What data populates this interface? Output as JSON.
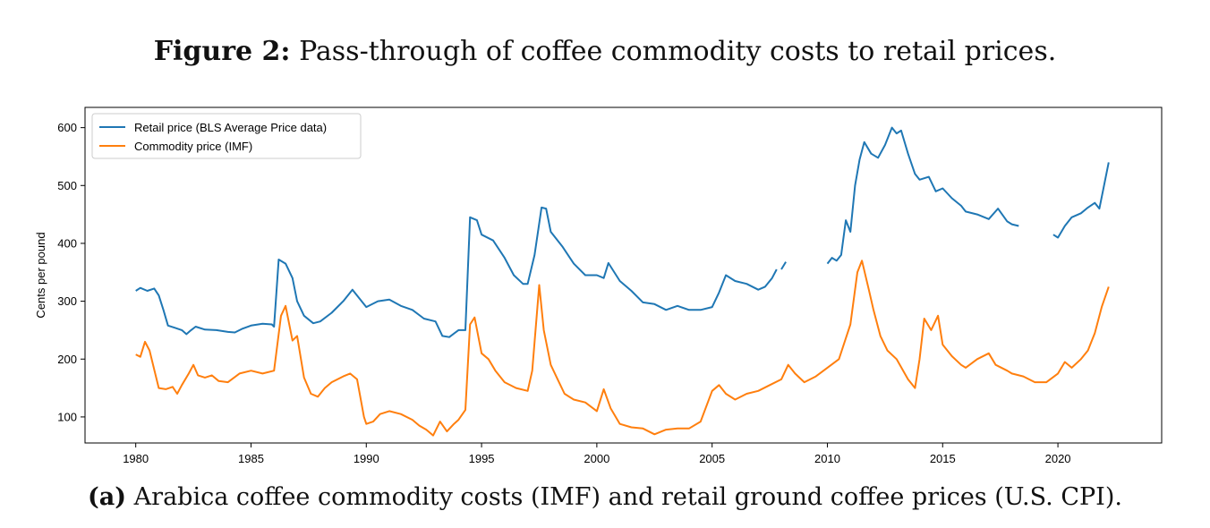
{
  "figure": {
    "label": "Figure 2:",
    "title": "Pass-through of coffee commodity costs to retail prices.",
    "caption_label": "(a)",
    "caption": "Arabica coffee commodity costs (IMF) and retail ground coffee prices (U.S. CPI)."
  },
  "chart_data": {
    "type": "line",
    "title": "",
    "xlabel": "",
    "ylabel": "Cents per pound",
    "xlim": [
      1977.8,
      2024.5
    ],
    "ylim": [
      55,
      635
    ],
    "xticks": [
      1980,
      1985,
      1990,
      1995,
      2000,
      2005,
      2010,
      2015,
      2020
    ],
    "yticks": [
      100,
      200,
      300,
      400,
      500,
      600
    ],
    "legend_position": "top-left",
    "series": [
      {
        "name": "Retail price (BLS Average Price data)",
        "color": "#1f77b4",
        "segments": [
          [
            [
              1980.0,
              318
            ],
            [
              1980.2,
              323
            ],
            [
              1980.5,
              318
            ],
            [
              1980.8,
              322
            ],
            [
              1981.0,
              310
            ],
            [
              1981.2,
              285
            ],
            [
              1981.4,
              258
            ],
            [
              1981.7,
              254
            ],
            [
              1982.0,
              250
            ],
            [
              1982.2,
              243
            ],
            [
              1982.4,
              250
            ],
            [
              1982.6,
              256
            ],
            [
              1983.0,
              251
            ],
            [
              1983.5,
              250
            ],
            [
              1984.0,
              247
            ],
            [
              1984.3,
              246
            ],
            [
              1984.6,
              252
            ],
            [
              1985.0,
              258
            ],
            [
              1985.5,
              261
            ],
            [
              1985.9,
              260
            ],
            [
              1986.0,
              256
            ],
            [
              1986.2,
              372
            ],
            [
              1986.5,
              365
            ],
            [
              1986.8,
              340
            ],
            [
              1987.0,
              300
            ],
            [
              1987.3,
              275
            ],
            [
              1987.7,
              262
            ],
            [
              1988.0,
              265
            ],
            [
              1988.5,
              280
            ],
            [
              1989.0,
              300
            ],
            [
              1989.4,
              320
            ],
            [
              1989.7,
              305
            ],
            [
              1990.0,
              290
            ],
            [
              1990.5,
              300
            ],
            [
              1991.0,
              303
            ],
            [
              1991.5,
              292
            ],
            [
              1992.0,
              285
            ],
            [
              1992.5,
              270
            ],
            [
              1993.0,
              265
            ],
            [
              1993.3,
              240
            ],
            [
              1993.6,
              238
            ],
            [
              1994.0,
              250
            ],
            [
              1994.3,
              250
            ],
            [
              1994.5,
              445
            ],
            [
              1994.8,
              440
            ],
            [
              1995.0,
              415
            ],
            [
              1995.5,
              405
            ],
            [
              1996.0,
              375
            ],
            [
              1996.4,
              345
            ],
            [
              1996.8,
              330
            ],
            [
              1997.0,
              330
            ],
            [
              1997.3,
              380
            ],
            [
              1997.6,
              462
            ],
            [
              1997.8,
              460
            ],
            [
              1998.0,
              420
            ],
            [
              1998.5,
              395
            ],
            [
              1999.0,
              365
            ],
            [
              1999.5,
              345
            ],
            [
              2000.0,
              345
            ],
            [
              2000.3,
              340
            ],
            [
              2000.5,
              366
            ],
            [
              2001.0,
              335
            ],
            [
              2001.5,
              318
            ],
            [
              2002.0,
              298
            ],
            [
              2002.5,
              295
            ],
            [
              2003.0,
              285
            ],
            [
              2003.5,
              292
            ],
            [
              2004.0,
              285
            ],
            [
              2004.5,
              285
            ],
            [
              2005.0,
              290
            ],
            [
              2005.3,
              315
            ],
            [
              2005.6,
              345
            ],
            [
              2006.0,
              335
            ],
            [
              2006.5,
              330
            ],
            [
              2007.0,
              320
            ],
            [
              2007.3,
              325
            ],
            [
              2007.6,
              340
            ],
            [
              2007.8,
              355
            ]
          ],
          [
            [
              2008.0,
              355
            ],
            [
              2008.2,
              368
            ]
          ],
          [
            [
              2010.0,
              365
            ],
            [
              2010.2,
              375
            ],
            [
              2010.4,
              370
            ],
            [
              2010.6,
              380
            ],
            [
              2010.8,
              440
            ],
            [
              2011.0,
              420
            ],
            [
              2011.2,
              500
            ],
            [
              2011.4,
              545
            ],
            [
              2011.6,
              575
            ],
            [
              2011.9,
              555
            ],
            [
              2012.2,
              548
            ],
            [
              2012.5,
              570
            ],
            [
              2012.8,
              600
            ],
            [
              2013.0,
              590
            ],
            [
              2013.2,
              595
            ],
            [
              2013.5,
              555
            ],
            [
              2013.8,
              520
            ],
            [
              2014.0,
              510
            ],
            [
              2014.4,
              515
            ],
            [
              2014.7,
              490
            ],
            [
              2015.0,
              495
            ],
            [
              2015.4,
              478
            ],
            [
              2015.8,
              465
            ],
            [
              2016.0,
              455
            ],
            [
              2016.5,
              450
            ],
            [
              2017.0,
              442
            ],
            [
              2017.4,
              460
            ],
            [
              2017.8,
              438
            ],
            [
              2018.0,
              433
            ],
            [
              2018.3,
              430
            ]
          ],
          [
            [
              2019.8,
              415
            ],
            [
              2020.0,
              410
            ],
            [
              2020.3,
              430
            ],
            [
              2020.6,
              445
            ],
            [
              2021.0,
              452
            ],
            [
              2021.3,
              462
            ],
            [
              2021.6,
              470
            ],
            [
              2021.8,
              460
            ],
            [
              2022.0,
              500
            ],
            [
              2022.2,
              540
            ]
          ]
        ]
      },
      {
        "name": "Commodity price (IMF)",
        "color": "#ff7f0e",
        "segments": [
          [
            [
              1980.0,
              208
            ],
            [
              1980.2,
              204
            ],
            [
              1980.4,
              230
            ],
            [
              1980.6,
              215
            ],
            [
              1980.8,
              182
            ],
            [
              1981.0,
              150
            ],
            [
              1981.3,
              148
            ],
            [
              1981.6,
              152
            ],
            [
              1981.8,
              140
            ],
            [
              1982.0,
              155
            ],
            [
              1982.3,
              175
            ],
            [
              1982.5,
              190
            ],
            [
              1982.7,
              172
            ],
            [
              1983.0,
              168
            ],
            [
              1983.3,
              172
            ],
            [
              1983.6,
              162
            ],
            [
              1984.0,
              160
            ],
            [
              1984.5,
              175
            ],
            [
              1985.0,
              180
            ],
            [
              1985.5,
              175
            ],
            [
              1986.0,
              180
            ],
            [
              1986.3,
              275
            ],
            [
              1986.5,
              292
            ],
            [
              1986.8,
              232
            ],
            [
              1987.0,
              240
            ],
            [
              1987.3,
              168
            ],
            [
              1987.6,
              140
            ],
            [
              1987.9,
              135
            ],
            [
              1988.2,
              150
            ],
            [
              1988.5,
              160
            ],
            [
              1989.0,
              170
            ],
            [
              1989.3,
              175
            ],
            [
              1989.6,
              165
            ],
            [
              1989.9,
              100
            ],
            [
              1990.0,
              88
            ],
            [
              1990.3,
              92
            ],
            [
              1990.6,
              105
            ],
            [
              1991.0,
              110
            ],
            [
              1991.5,
              105
            ],
            [
              1992.0,
              95
            ],
            [
              1992.3,
              85
            ],
            [
              1992.6,
              78
            ],
            [
              1992.9,
              68
            ],
            [
              1993.2,
              92
            ],
            [
              1993.5,
              75
            ],
            [
              1993.8,
              88
            ],
            [
              1994.0,
              95
            ],
            [
              1994.3,
              112
            ],
            [
              1994.5,
              260
            ],
            [
              1994.7,
              272
            ],
            [
              1995.0,
              210
            ],
            [
              1995.3,
              200
            ],
            [
              1995.6,
              180
            ],
            [
              1996.0,
              160
            ],
            [
              1996.5,
              150
            ],
            [
              1997.0,
              145
            ],
            [
              1997.2,
              180
            ],
            [
              1997.5,
              328
            ],
            [
              1997.7,
              250
            ],
            [
              1998.0,
              190
            ],
            [
              1998.3,
              165
            ],
            [
              1998.6,
              140
            ],
            [
              1999.0,
              130
            ],
            [
              1999.5,
              125
            ],
            [
              2000.0,
              110
            ],
            [
              2000.3,
              148
            ],
            [
              2000.6,
              115
            ],
            [
              2001.0,
              88
            ],
            [
              2001.5,
              82
            ],
            [
              2002.0,
              80
            ],
            [
              2002.5,
              70
            ],
            [
              2003.0,
              78
            ],
            [
              2003.5,
              80
            ],
            [
              2004.0,
              80
            ],
            [
              2004.5,
              92
            ],
            [
              2005.0,
              145
            ],
            [
              2005.3,
              155
            ],
            [
              2005.6,
              140
            ],
            [
              2006.0,
              130
            ],
            [
              2006.5,
              140
            ],
            [
              2007.0,
              145
            ],
            [
              2007.5,
              155
            ],
            [
              2008.0,
              165
            ],
            [
              2008.3,
              190
            ],
            [
              2008.6,
              175
            ],
            [
              2009.0,
              160
            ],
            [
              2009.5,
              170
            ],
            [
              2010.0,
              185
            ],
            [
              2010.5,
              200
            ],
            [
              2011.0,
              260
            ],
            [
              2011.3,
              350
            ],
            [
              2011.5,
              370
            ],
            [
              2011.8,
              320
            ],
            [
              2012.0,
              285
            ],
            [
              2012.3,
              240
            ],
            [
              2012.6,
              215
            ],
            [
              2013.0,
              200
            ],
            [
              2013.5,
              165
            ],
            [
              2013.8,
              150
            ],
            [
              2014.0,
              200
            ],
            [
              2014.2,
              270
            ],
            [
              2014.5,
              250
            ],
            [
              2014.8,
              275
            ],
            [
              2015.0,
              225
            ],
            [
              2015.4,
              205
            ],
            [
              2015.8,
              190
            ],
            [
              2016.0,
              185
            ],
            [
              2016.5,
              200
            ],
            [
              2017.0,
              210
            ],
            [
              2017.3,
              190
            ],
            [
              2017.8,
              180
            ],
            [
              2018.0,
              175
            ],
            [
              2018.5,
              170
            ],
            [
              2019.0,
              160
            ],
            [
              2019.5,
              160
            ],
            [
              2020.0,
              175
            ],
            [
              2020.3,
              195
            ],
            [
              2020.6,
              185
            ],
            [
              2021.0,
              200
            ],
            [
              2021.3,
              215
            ],
            [
              2021.6,
              245
            ],
            [
              2021.9,
              290
            ],
            [
              2022.2,
              325
            ]
          ]
        ]
      }
    ]
  }
}
